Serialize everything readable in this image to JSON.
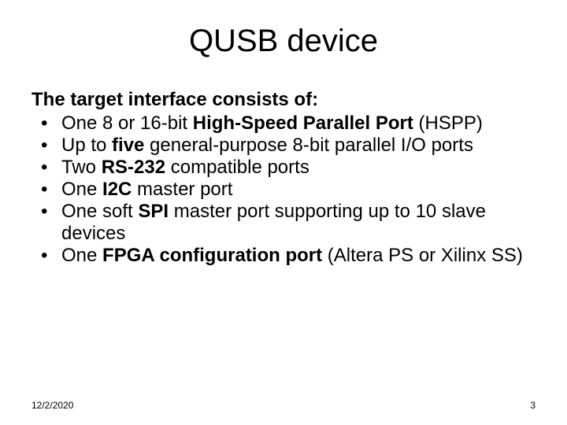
{
  "title": "QUSB device",
  "intro": "The target interface consists of:",
  "bullets": [
    {
      "pre": "One 8 or 16-bit ",
      "bold": "High-Speed Parallel Port",
      "post": " (HSPP)"
    },
    {
      "pre": "Up to ",
      "bold": "five",
      "post": " general-purpose 8-bit parallel I/O ports"
    },
    {
      "pre": "Two ",
      "bold": "RS-232",
      "post": " compatible ports"
    },
    {
      "pre": "One ",
      "bold": "I2C",
      "post": " master port"
    },
    {
      "pre": "One soft ",
      "bold": "SPI",
      "post": " master port supporting up to 10 slave devices"
    },
    {
      "pre": "One ",
      "bold": "FPGA configuration port",
      "post": " (Altera PS or Xilinx SS)"
    }
  ],
  "footer": {
    "date": "12/2/2020",
    "page": "3"
  },
  "style": {
    "background": "#ffffff",
    "text_color": "#000000",
    "title_fontsize": 40,
    "body_fontsize": 24,
    "footer_fontsize": 12
  }
}
